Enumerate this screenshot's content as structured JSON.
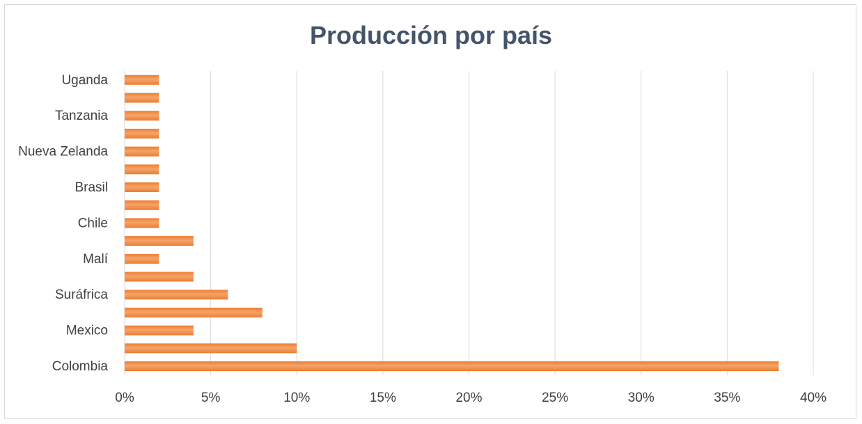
{
  "chart_data": {
    "type": "bar",
    "orientation": "horizontal",
    "title": "Producción por país",
    "categories": [
      "Colombia",
      "",
      "Mexico",
      "",
      "Suráfrica ",
      "",
      "Malí",
      "",
      "Chile ",
      "",
      "Brasil",
      "",
      "Nueva Zelanda",
      "",
      "Tanzania ",
      "",
      "Uganda"
    ],
    "values": [
      38,
      10,
      4,
      8,
      6,
      4,
      2,
      4,
      2,
      2,
      2,
      2,
      2,
      2,
      2,
      2,
      2
    ],
    "value_unit": "%",
    "xlim": [
      0,
      40
    ],
    "x_ticks": [
      "0%",
      "5%",
      "10%",
      "15%",
      "20%",
      "25%",
      "30%",
      "35%",
      "40%"
    ],
    "xlabel": "",
    "ylabel": "",
    "grid": "vertical",
    "legend": "none",
    "colors": {
      "bar_fill": "#ed7d31",
      "bar_highlight": "#f4a46a",
      "grid": "#d9d9d9",
      "title": "#44546a",
      "tick_text": "#404040"
    }
  }
}
